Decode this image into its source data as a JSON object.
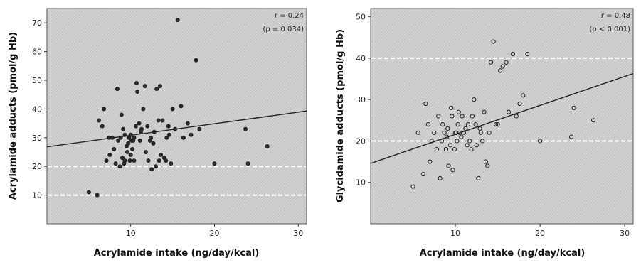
{
  "chart_data": [
    {
      "type": "scatter",
      "title": "",
      "xlabel": "Acrylamide intake (ng/day/kcal)",
      "ylabel": "Acrylamide adducts (pmol/g Hb)",
      "xlim": [
        0,
        31
      ],
      "ylim": [
        0,
        75
      ],
      "xticks": [
        10,
        20,
        30
      ],
      "yticks": [
        10,
        20,
        30,
        40,
        50,
        60,
        70
      ],
      "reference_lines": [
        10,
        20
      ],
      "annotations": [
        "r = 0.24",
        "(p = 0.034)"
      ],
      "regression": {
        "x": [
          0,
          31
        ],
        "y": [
          26.8,
          39.3
        ]
      },
      "grid": false,
      "marker": "filled",
      "x": [
        5.0,
        6.0,
        6.2,
        6.6,
        6.8,
        7.1,
        7.4,
        7.5,
        7.8,
        8.0,
        8.2,
        8.4,
        8.5,
        8.7,
        8.8,
        8.9,
        9.0,
        9.1,
        9.2,
        9.3,
        9.3,
        9.5,
        9.6,
        9.7,
        9.8,
        9.9,
        10.0,
        10.0,
        10.1,
        10.2,
        10.3,
        10.4,
        10.4,
        10.6,
        10.7,
        10.8,
        11.0,
        11.1,
        11.2,
        11.3,
        11.5,
        11.7,
        11.8,
        12.0,
        12.1,
        12.3,
        12.4,
        12.5,
        12.7,
        12.8,
        13.0,
        13.1,
        13.3,
        13.4,
        13.5,
        13.6,
        13.8,
        14.0,
        14.2,
        14.3,
        14.5,
        14.6,
        14.8,
        15.0,
        15.3,
        15.6,
        16.0,
        16.3,
        16.8,
        17.2,
        17.8,
        18.2,
        20.0,
        23.7,
        24.0,
        26.3
      ],
      "y": [
        11,
        10,
        36,
        34,
        40,
        22,
        30,
        24,
        30,
        26,
        21,
        47,
        29,
        20,
        30,
        38,
        23,
        33,
        21,
        31,
        22,
        27,
        25,
        28,
        30,
        22,
        24,
        31,
        29,
        26,
        29,
        30,
        22,
        34,
        49,
        46,
        35,
        29,
        32,
        33,
        40,
        48,
        25,
        34,
        22,
        29,
        30,
        19,
        28,
        32,
        20,
        47,
        36,
        22,
        48,
        24,
        36,
        23,
        22,
        30,
        34,
        31,
        21,
        40,
        33,
        71,
        41,
        30,
        35,
        31,
        57,
        33,
        21,
        33,
        21,
        27
      ]
    },
    {
      "type": "scatter",
      "title": "",
      "xlabel": "Acrylamide intake (ng/day/kcal)",
      "ylabel": "Glycidamide adducts (pmol/g Hb)",
      "xlim": [
        0,
        31
      ],
      "ylim": [
        0,
        52
      ],
      "xticks": [
        10,
        20,
        30
      ],
      "yticks": [
        10,
        20,
        30,
        40,
        50
      ],
      "reference_lines": [
        20,
        40
      ],
      "annotations": [
        "r = 0.48",
        "(p < 0.001)"
      ],
      "regression": {
        "x": [
          0,
          31
        ],
        "y": [
          14.6,
          36.3
        ]
      },
      "grid": false,
      "marker": "open",
      "x": [
        5.0,
        5.6,
        6.2,
        6.5,
        6.8,
        7.0,
        7.2,
        7.5,
        7.8,
        8.0,
        8.2,
        8.4,
        8.5,
        8.7,
        8.9,
        9.0,
        9.1,
        9.2,
        9.4,
        9.5,
        9.6,
        9.7,
        9.9,
        10.0,
        10.1,
        10.2,
        10.3,
        10.4,
        10.5,
        10.7,
        10.8,
        11.0,
        11.2,
        11.4,
        11.5,
        11.7,
        11.9,
        12.0,
        12.2,
        12.4,
        12.5,
        12.7,
        12.9,
        13.0,
        13.2,
        13.4,
        13.6,
        13.8,
        14.0,
        14.2,
        14.5,
        14.8,
        15.0,
        15.3,
        15.6,
        16.0,
        16.3,
        16.8,
        17.2,
        17.6,
        18.0,
        18.5,
        20.0,
        23.7,
        24.0,
        26.3
      ],
      "y": [
        9,
        22,
        12,
        29,
        24,
        15,
        20,
        22,
        18,
        26,
        11,
        20,
        24,
        22,
        18,
        21,
        23,
        14,
        19,
        28,
        26,
        13,
        18,
        22,
        22,
        20,
        24,
        27,
        22,
        21,
        26,
        22,
        23,
        19,
        24,
        20,
        18,
        26,
        30,
        24,
        19,
        11,
        23,
        22,
        20,
        27,
        15,
        14,
        22,
        39,
        44,
        24,
        24,
        37,
        38,
        39,
        27,
        41,
        26,
        29,
        31,
        41,
        20,
        21,
        28,
        25
      ]
    }
  ]
}
